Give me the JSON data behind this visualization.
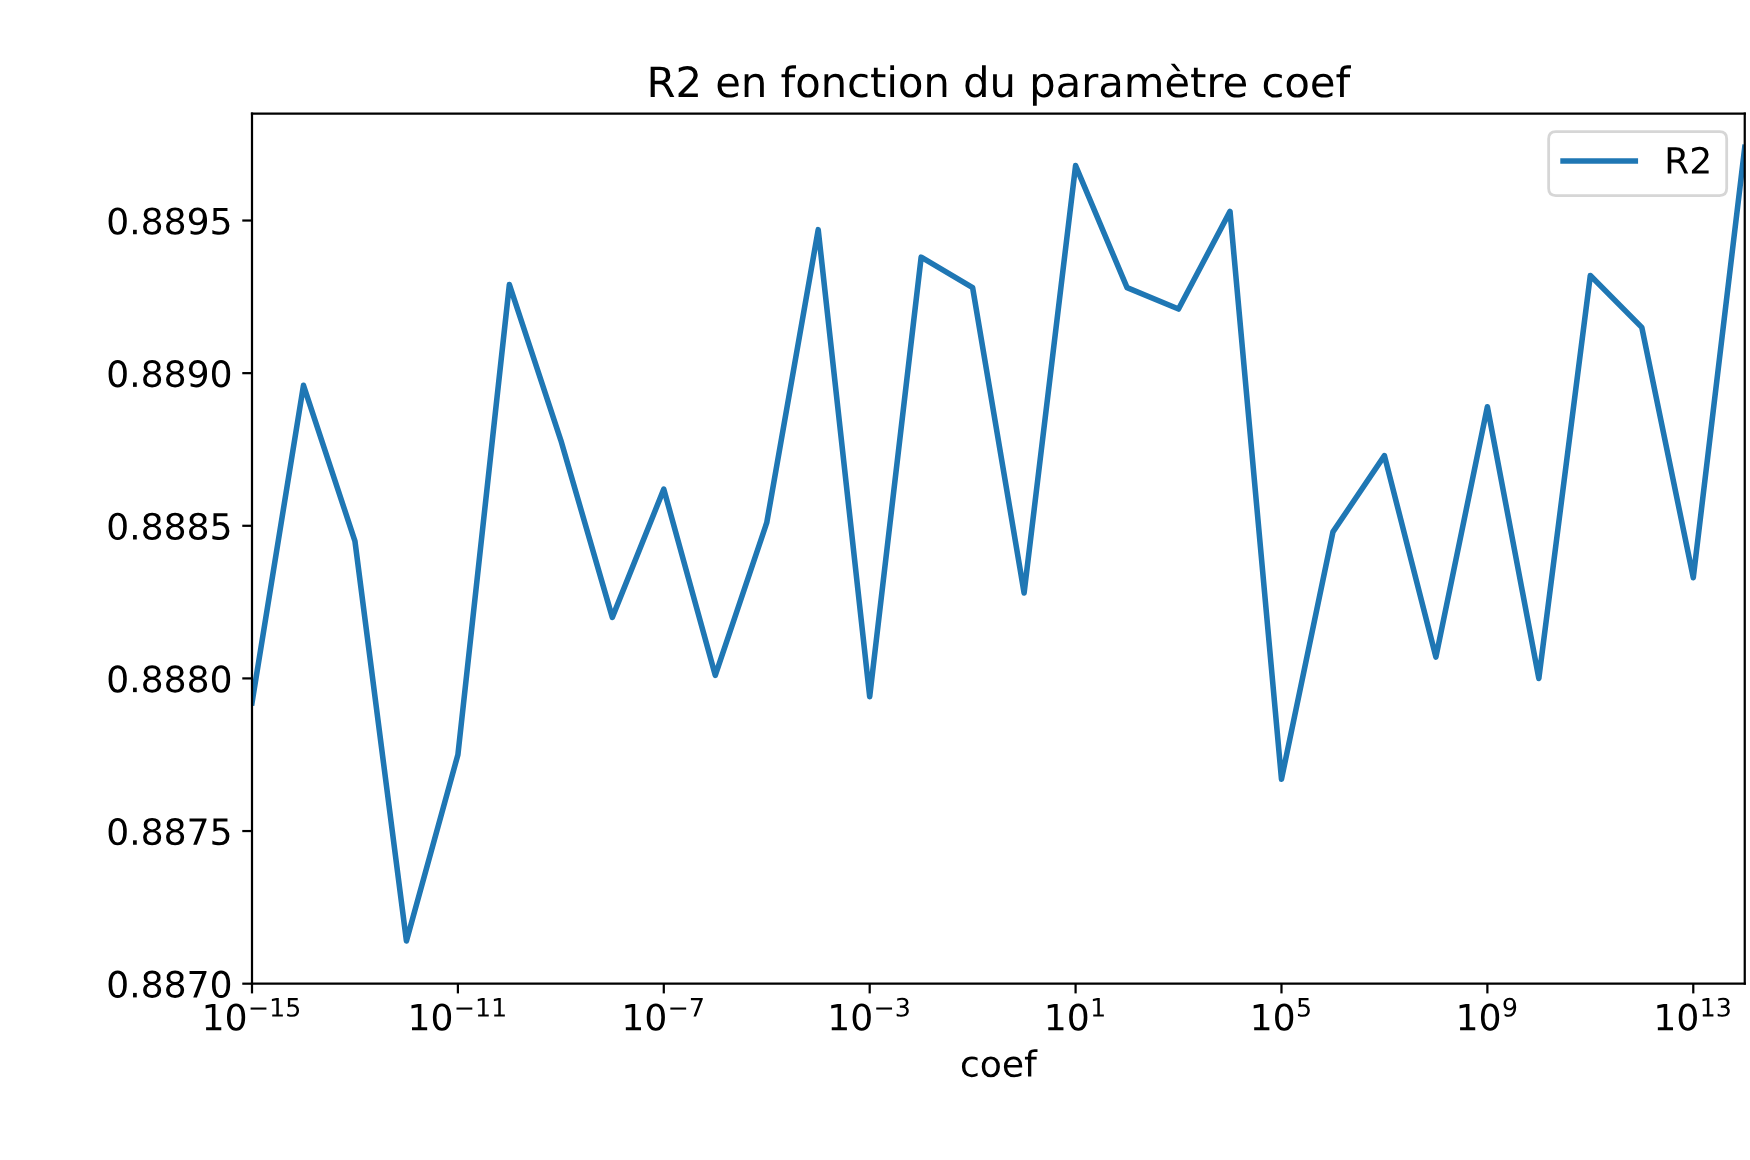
{
  "chart_data": {
    "type": "line",
    "title": "R2 en fonction du paramètre coef",
    "xlabel": "coef",
    "log": "x",
    "x": [
      1e-15,
      1e-14,
      1e-13,
      1e-12,
      1e-11,
      1e-10,
      1e-09,
      1e-08,
      1e-07,
      1e-06,
      1e-05,
      0.0001,
      0.001,
      0.01,
      0.1,
      1,
      10,
      100,
      1000.0,
      10000.0,
      100000.0,
      1000000.0,
      10000000.0,
      100000000.0,
      1000000000.0,
      10000000000.0,
      100000000000.0,
      1000000000000.0,
      10000000000000.0,
      100000000000000.0
    ],
    "series": [
      {
        "name": "R2",
        "color": "#1f77b4",
        "values": [
          0.88792,
          0.88896,
          0.88845,
          0.88714,
          0.88775,
          0.88929,
          0.88878,
          0.8882,
          0.88862,
          0.88801,
          0.88851,
          0.88947,
          0.88794,
          0.88938,
          0.88928,
          0.88828,
          0.88968,
          0.88928,
          0.88921,
          0.88953,
          0.88767,
          0.88848,
          0.88873,
          0.88807,
          0.88889,
          0.888,
          0.88932,
          0.88915,
          0.88833,
          0.88974
        ]
      }
    ],
    "xlim": [
      1e-15,
      100000000000000.0
    ],
    "ylim": [
      0.887,
      0.88985
    ],
    "xticks": [
      {
        "value": 1e-15,
        "label": "10$^{−15}$"
      },
      {
        "value": 1e-11,
        "label": "10$^{−11}$"
      },
      {
        "value": 1e-07,
        "label": "10$^{−7}$"
      },
      {
        "value": 0.001,
        "label": "10$^{−3}$"
      },
      {
        "value": 10,
        "label": "10$^{1}$"
      },
      {
        "value": 100000.0,
        "label": "10$^{5}$"
      },
      {
        "value": 1000000000.0,
        "label": "10$^{9}$"
      },
      {
        "value": 10000000000000.0,
        "label": "10$^{13}$"
      }
    ],
    "yticks": [
      {
        "value": 0.887,
        "label": "0.8870"
      },
      {
        "value": 0.8875,
        "label": "0.8875"
      },
      {
        "value": 0.888,
        "label": "0.8880"
      },
      {
        "value": 0.8885,
        "label": "0.8885"
      },
      {
        "value": 0.889,
        "label": "0.8890"
      },
      {
        "value": 0.8895,
        "label": "0.8895"
      }
    ],
    "legend": "top right",
    "grid": false,
    "marker": "none",
    "line_style": "solid"
  }
}
